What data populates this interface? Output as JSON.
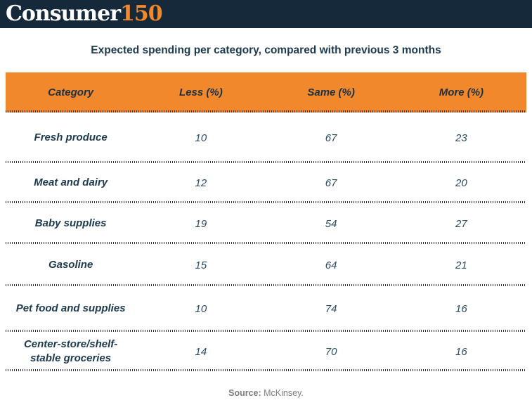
{
  "brand": {
    "consumer": "Consumer",
    "number": "150"
  },
  "source": {
    "label": "Source:",
    "value": "McKinsey."
  },
  "colors": {
    "brand_navy": "#16293A",
    "accent_orange": "#F1882C",
    "text_navy": "#1D3A4E",
    "source_gray": "#7E7E7E"
  },
  "chart_data": {
    "type": "table",
    "title": "Expected spending per category, compared with previous 3 months",
    "columns": [
      "Category",
      "Less (%)",
      "Same (%)",
      "More (%)"
    ],
    "categories": [
      "Fresh produce",
      "Meat and dairy",
      "Baby supplies",
      "Gasoline",
      "Pet food and supplies",
      "Center-store/shelf-stable groceries"
    ],
    "series": [
      {
        "name": "Less (%)",
        "values": [
          10,
          12,
          19,
          15,
          10,
          14
        ]
      },
      {
        "name": "Same (%)",
        "values": [
          67,
          67,
          54,
          64,
          74,
          70
        ]
      },
      {
        "name": "More (%)",
        "values": [
          23,
          20,
          27,
          21,
          16,
          16
        ]
      }
    ],
    "layout": {
      "header_background": "#F1882C",
      "row_separator": "dotted",
      "grid": "horizontal-only"
    },
    "source": "Source: McKinsey."
  }
}
